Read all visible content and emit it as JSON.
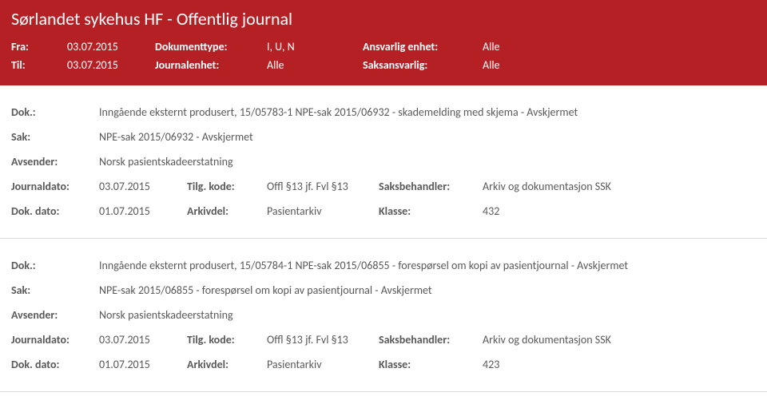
{
  "header": {
    "title": "Sørlandet sykehus HF - Offentlig journal",
    "fra_label": "Fra:",
    "fra_value": "03.07.2015",
    "til_label": "Til:",
    "til_value": "03.07.2015",
    "dokumenttype_label": "Dokumenttype:",
    "dokumenttype_value": "I, U, N",
    "journalenhet_label": "Journalenhet:",
    "journalenhet_value": "Alle",
    "ansvarlig_label": "Ansvarlig enhet:",
    "ansvarlig_value": "Alle",
    "saksansvarlig_label": "Saksansvarlig:",
    "saksansvarlig_value": "Alle"
  },
  "records": [
    {
      "dok_label": "Dok.:",
      "dok_value": "Inngående eksternt produsert, 15/05783-1 NPE-sak 2015/06932 - skademelding med skjema - Avskjermet",
      "sak_label": "Sak:",
      "sak_value": "NPE-sak 2015/06932 - Avskjermet",
      "avsender_label": "Avsender:",
      "avsender_value": "Norsk pasientskadeerstatning",
      "journaldato_label": "Journaldato:",
      "journaldato_value": "03.07.2015",
      "tilgkode_label": "Tilg. kode:",
      "tilgkode_value": "Offl §13 jf. Fvl §13",
      "saksbehandler_label": "Saksbehandler:",
      "saksbehandler_value": "Arkiv og dokumentasjon SSK",
      "dokdato_label": "Dok. dato:",
      "dokdato_value": "01.07.2015",
      "arkivdel_label": "Arkivdel:",
      "arkivdel_value": "Pasientarkiv",
      "klasse_label": "Klasse:",
      "klasse_value": "432"
    },
    {
      "dok_label": "Dok.:",
      "dok_value": "Inngående eksternt produsert, 15/05784-1 NPE-sak 2015/06855 - forespørsel om kopi av pasientjournal - Avskjermet",
      "sak_label": "Sak:",
      "sak_value": "NPE-sak 2015/06855 - forespørsel om kopi av pasientjournal - Avskjermet",
      "avsender_label": "Avsender:",
      "avsender_value": "Norsk pasientskadeerstatning",
      "journaldato_label": "Journaldato:",
      "journaldato_value": "03.07.2015",
      "tilgkode_label": "Tilg. kode:",
      "tilgkode_value": "Offl §13 jf. Fvl §13",
      "saksbehandler_label": "Saksbehandler:",
      "saksbehandler_value": "Arkiv og dokumentasjon SSK",
      "dokdato_label": "Dok. dato:",
      "dokdato_value": "01.07.2015",
      "arkivdel_label": "Arkivdel:",
      "arkivdel_value": "Pasientarkiv",
      "klasse_label": "Klasse:",
      "klasse_value": "423"
    }
  ]
}
